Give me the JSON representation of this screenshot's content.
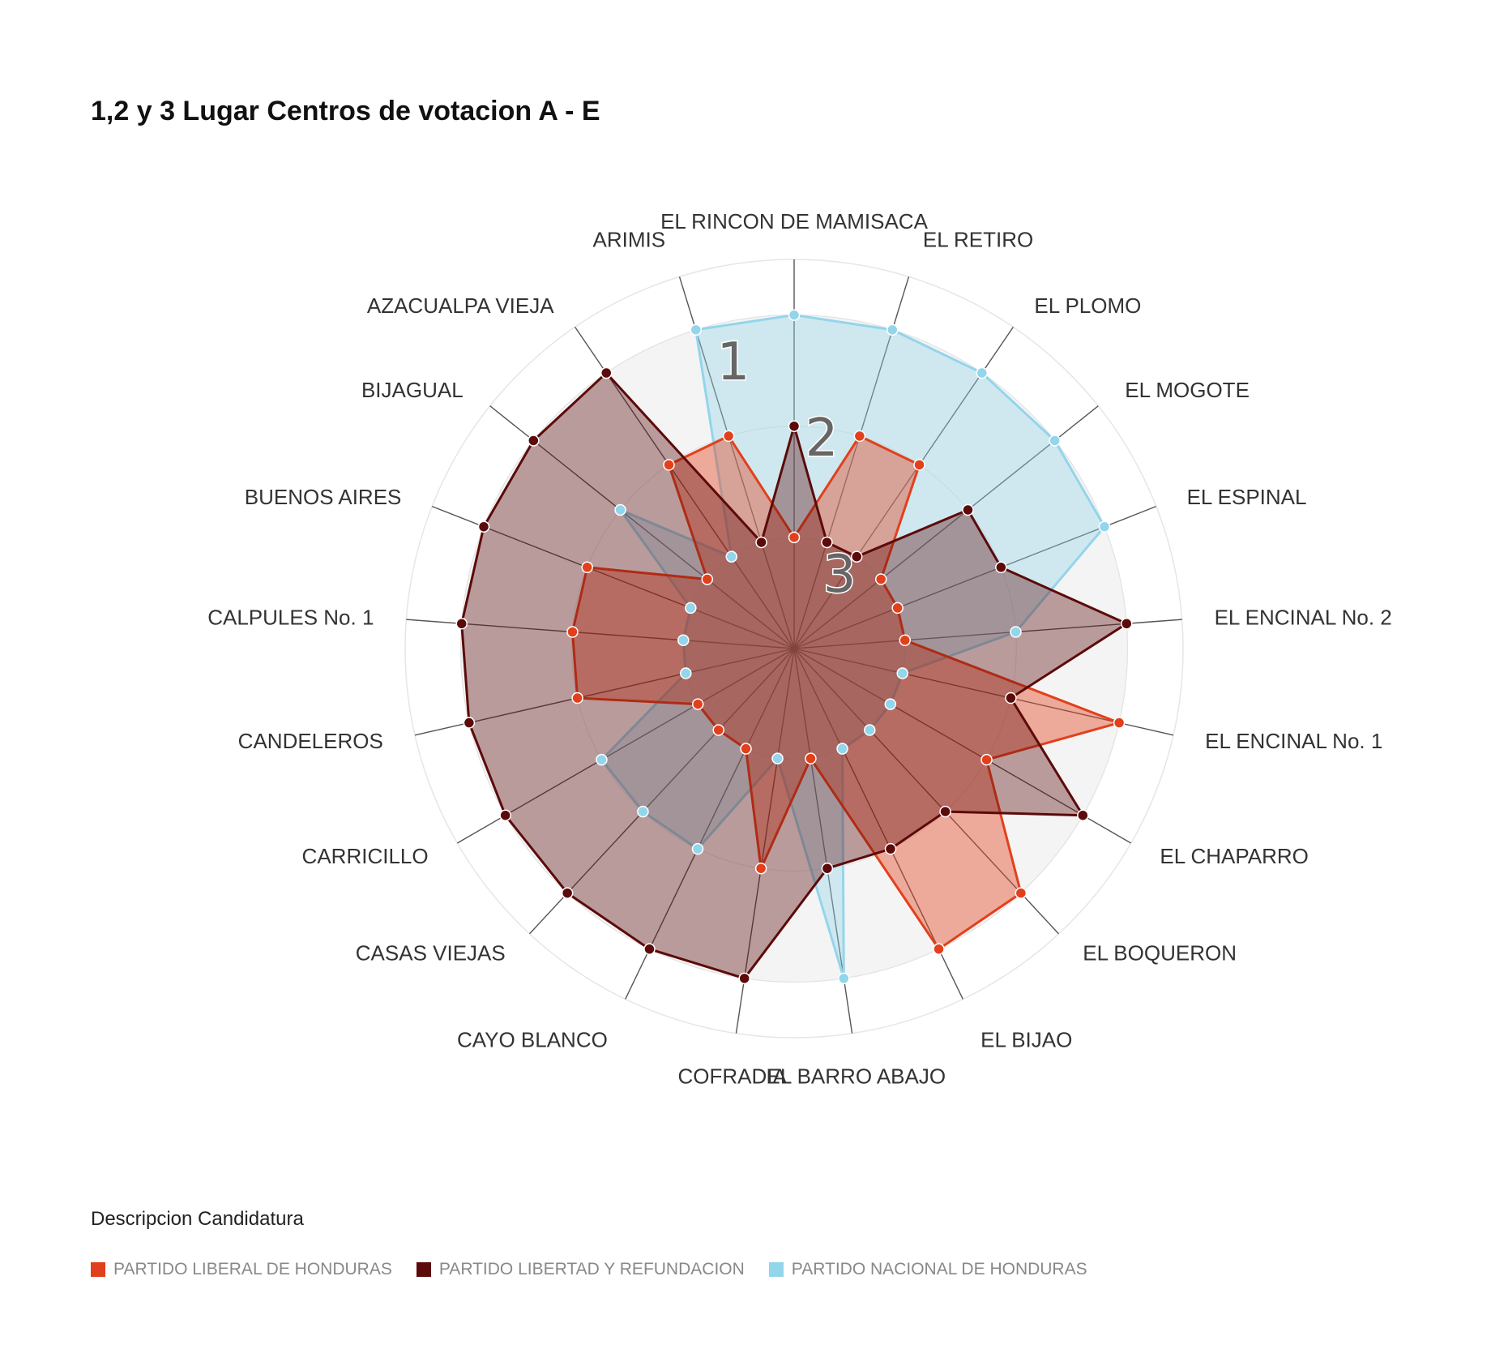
{
  "chart_data": {
    "type": "radar",
    "title": "1,2 y 3 Lugar Centros de votacion A - E",
    "categories": [
      "EL RINCON DE MAMISACA",
      "EL RETIRO",
      "EL PLOMO",
      "EL MOGOTE",
      "EL ESPINAL",
      "EL ENCINAL No. 2",
      "EL ENCINAL No. 1",
      "EL CHAPARRO",
      "EL BOQUERON",
      "EL BIJAO",
      "EL BARRO ABAJO",
      "COFRADIA",
      "CAYO BLANCO",
      "CASAS VIEJAS",
      "CARRICILLO",
      "CANDELEROS",
      "CALPULES No. 1",
      "BUENOS AIRES",
      "BIJAGUAL",
      "AZACUALPA VIEJA",
      "ARIMIS"
    ],
    "rlim": [
      0,
      3.5
    ],
    "grid_levels": [
      1,
      2,
      3
    ],
    "annotations": [
      "1",
      "2",
      "3"
    ],
    "series": [
      {
        "name": "PARTIDO LIBERAL DE HONDURAS",
        "color": "#e2401c",
        "values": [
          1,
          2,
          2,
          1,
          1,
          1,
          3,
          2,
          3,
          3,
          1,
          2,
          1,
          1,
          1,
          2,
          2,
          2,
          1,
          2,
          2
        ]
      },
      {
        "name": "PARTIDO LIBERTAD Y REFUNDACION",
        "color": "#5c0a0a",
        "values": [
          2,
          1,
          1,
          2,
          2,
          3,
          2,
          3,
          2,
          2,
          2,
          3,
          3,
          3,
          3,
          3,
          3,
          3,
          3,
          3,
          1
        ]
      },
      {
        "name": "PARTIDO NACIONAL DE HONDURAS",
        "color": "#93d5eb",
        "values": [
          3,
          3,
          3,
          3,
          3,
          2,
          1,
          1,
          1,
          1,
          3,
          1,
          2,
          2,
          2,
          1,
          1,
          1,
          2,
          1,
          3
        ]
      }
    ],
    "legend": {
      "title": "Descripcion Candidatura",
      "position": "bottom-left"
    }
  }
}
